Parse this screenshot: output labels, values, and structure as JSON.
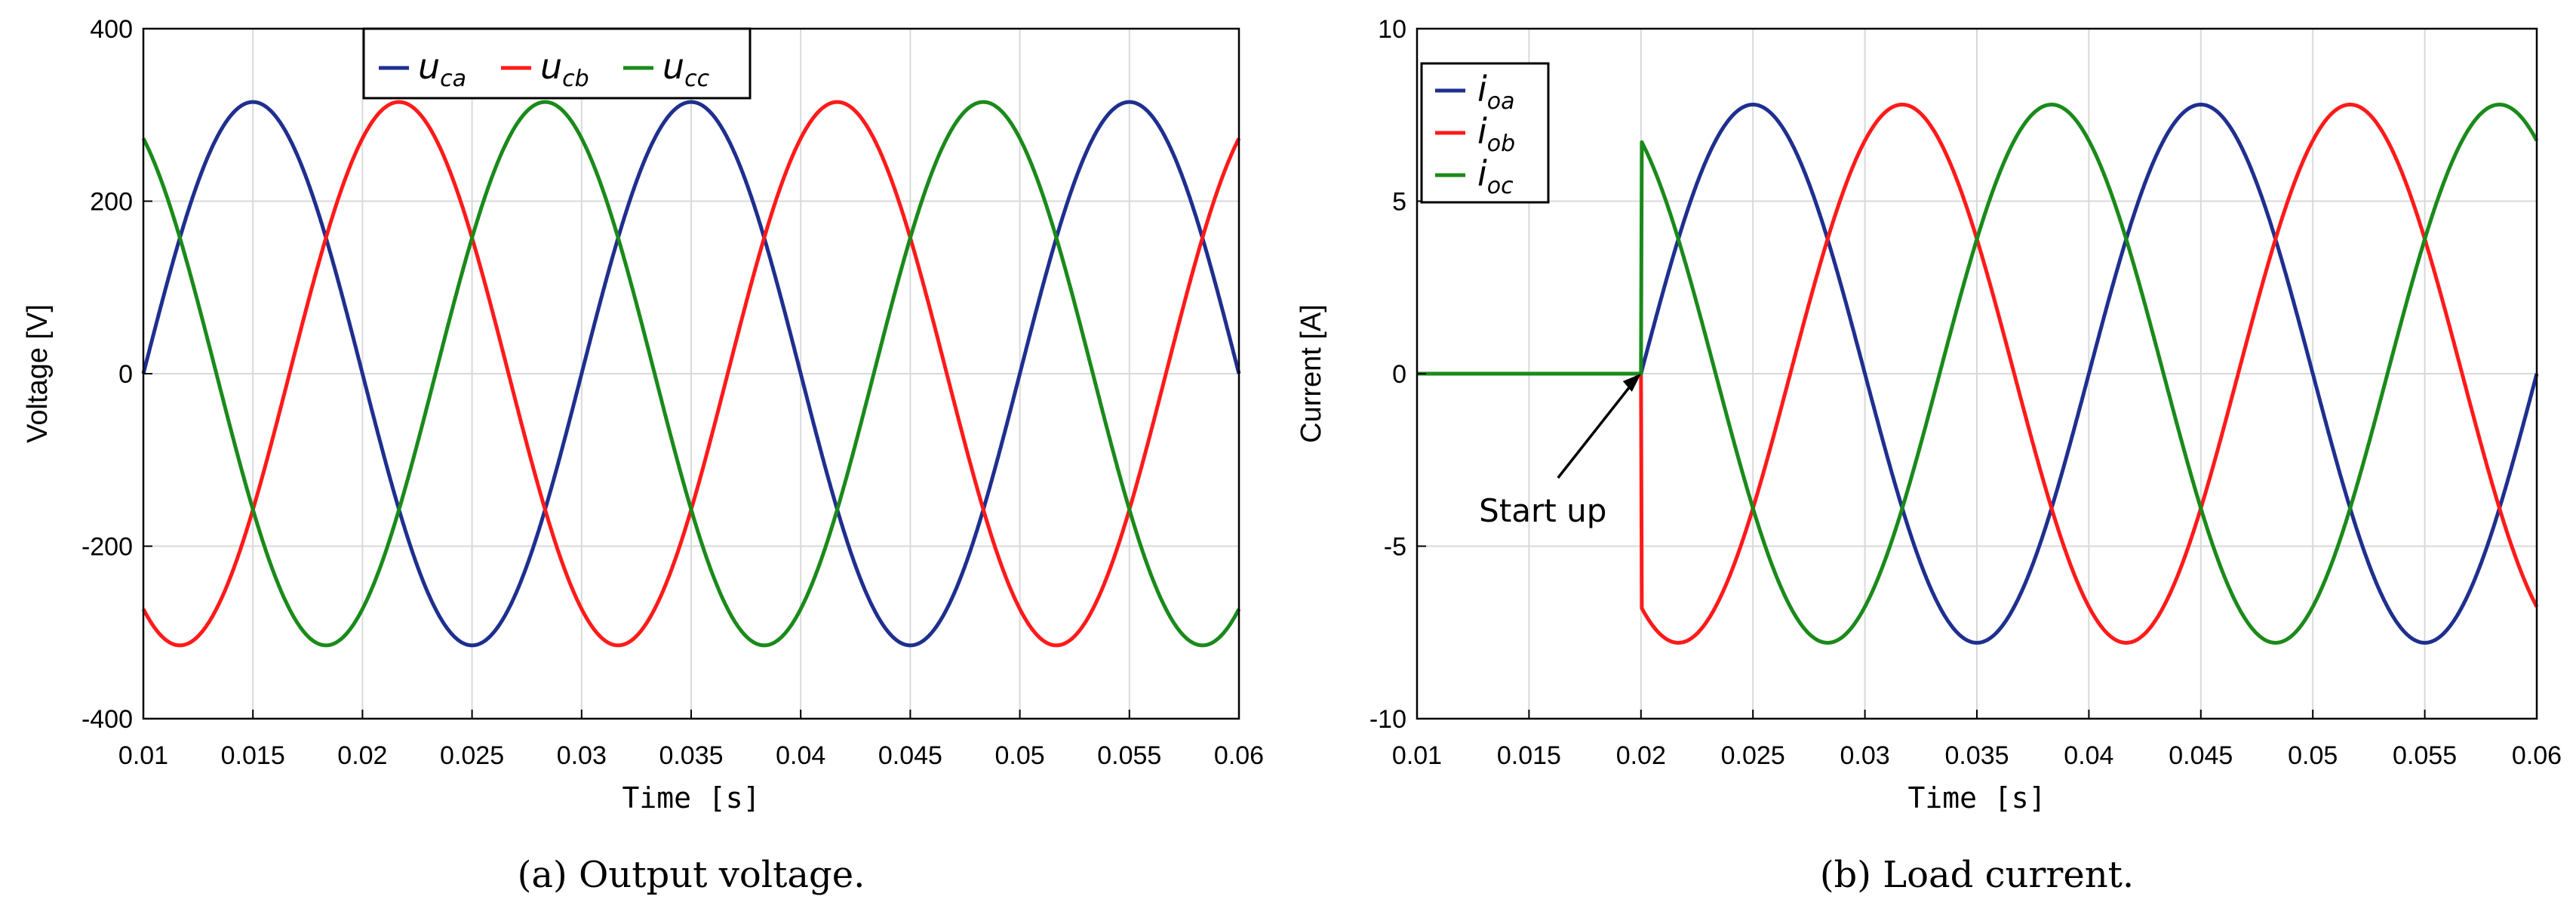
{
  "chart_data": [
    {
      "type": "line",
      "caption": "(a)  Output voltage.",
      "xlabel": "Time [s]",
      "ylabel": "Voltage [V]",
      "xlim": [
        0.01,
        0.06
      ],
      "ylim": [
        -400,
        400
      ],
      "xticks": [
        0.01,
        0.015,
        0.02,
        0.025,
        0.03,
        0.035,
        0.04,
        0.045,
        0.05,
        0.055,
        0.06
      ],
      "xtick_labels": [
        "0.01",
        "0.015",
        "0.02",
        "0.025",
        "0.03",
        "0.035",
        "0.04",
        "0.045",
        "0.05",
        "0.055",
        "0.06"
      ],
      "yticks": [
        -400,
        -200,
        0,
        200,
        400
      ],
      "ytick_labels": [
        "-400",
        "-200",
        "0",
        "200",
        "400"
      ],
      "grid": true,
      "legend": {
        "placement": "top",
        "orientation": "horizontal"
      },
      "series": [
        {
          "name": "u",
          "subscript": "ca",
          "color": "#1f2f8f",
          "amplitude": 315,
          "frequency_hz": 50,
          "phase_deg": 180,
          "start_time": 0.01
        },
        {
          "name": "u",
          "subscript": "cb",
          "color": "#ff1a1a",
          "amplitude": 315,
          "frequency_hz": 50,
          "phase_deg": 60,
          "start_time": 0.01
        },
        {
          "name": "u",
          "subscript": "cc",
          "color": "#1a8a1a",
          "amplitude": 315,
          "frequency_hz": 50,
          "phase_deg": -60,
          "start_time": 0.01
        }
      ]
    },
    {
      "type": "line",
      "caption": "(b)  Load current.",
      "xlabel": "Time [s]",
      "ylabel": "Current [A]",
      "xlim": [
        0.01,
        0.06
      ],
      "ylim": [
        -10,
        10
      ],
      "xticks": [
        0.01,
        0.015,
        0.02,
        0.025,
        0.03,
        0.035,
        0.04,
        0.045,
        0.05,
        0.055,
        0.06
      ],
      "xtick_labels": [
        "0.01",
        "0.015",
        "0.02",
        "0.025",
        "0.03",
        "0.035",
        "0.04",
        "0.045",
        "0.05",
        "0.055",
        "0.06"
      ],
      "yticks": [
        -10,
        -5,
        0,
        5,
        10
      ],
      "ytick_labels": [
        "-10",
        "-5",
        "0",
        "5",
        "10"
      ],
      "grid": true,
      "legend": {
        "placement": "top-left",
        "orientation": "vertical"
      },
      "annotation": {
        "text": "Start up",
        "x": 0.02,
        "y": 0
      },
      "series": [
        {
          "name": "i",
          "subscript": "oa",
          "color": "#1f2f8f",
          "amplitude": 7.8,
          "frequency_hz": 50,
          "phase_deg": 0,
          "start_time": 0.02
        },
        {
          "name": "i",
          "subscript": "ob",
          "color": "#ff1a1a",
          "amplitude": 7.8,
          "frequency_hz": 50,
          "phase_deg": -120,
          "start_time": 0.02
        },
        {
          "name": "i",
          "subscript": "oc",
          "color": "#1a8a1a",
          "amplitude": 7.8,
          "frequency_hz": 50,
          "phase_deg": 120,
          "start_time": 0.02
        }
      ]
    }
  ]
}
